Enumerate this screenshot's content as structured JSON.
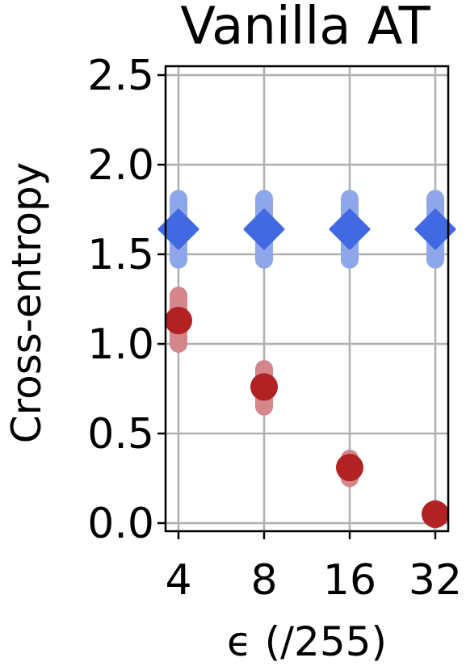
{
  "chart_data": {
    "type": "scatter",
    "title": "Vanilla AT",
    "xlabel": "ϵ (/255)",
    "ylabel": "Cross-entropy",
    "categories": [
      "4",
      "8",
      "16",
      "32"
    ],
    "ylim": [
      -0.05,
      2.55
    ],
    "yticks": [
      "0.0",
      "0.5",
      "1.0",
      "1.5",
      "2.0",
      "2.5"
    ],
    "ytick_values": [
      0.0,
      0.5,
      1.0,
      1.5,
      2.0,
      2.5
    ],
    "grid": true,
    "legend": "none",
    "series": [
      {
        "marker": "diamond",
        "color": "#4169e1",
        "error_color": "#8ea6ea",
        "values": [
          1.64,
          1.64,
          1.64,
          1.64
        ],
        "err_low": [
          1.47,
          1.47,
          1.47,
          1.47
        ],
        "err_high": [
          1.81,
          1.81,
          1.81,
          1.81
        ]
      },
      {
        "marker": "circle",
        "color": "#b22222",
        "error_color": "#d4868a",
        "values": [
          1.13,
          0.76,
          0.31,
          0.05
        ],
        "err_low": [
          1.0,
          0.65,
          0.25,
          0.02
        ],
        "err_high": [
          1.27,
          0.86,
          0.36,
          0.08
        ]
      }
    ]
  }
}
